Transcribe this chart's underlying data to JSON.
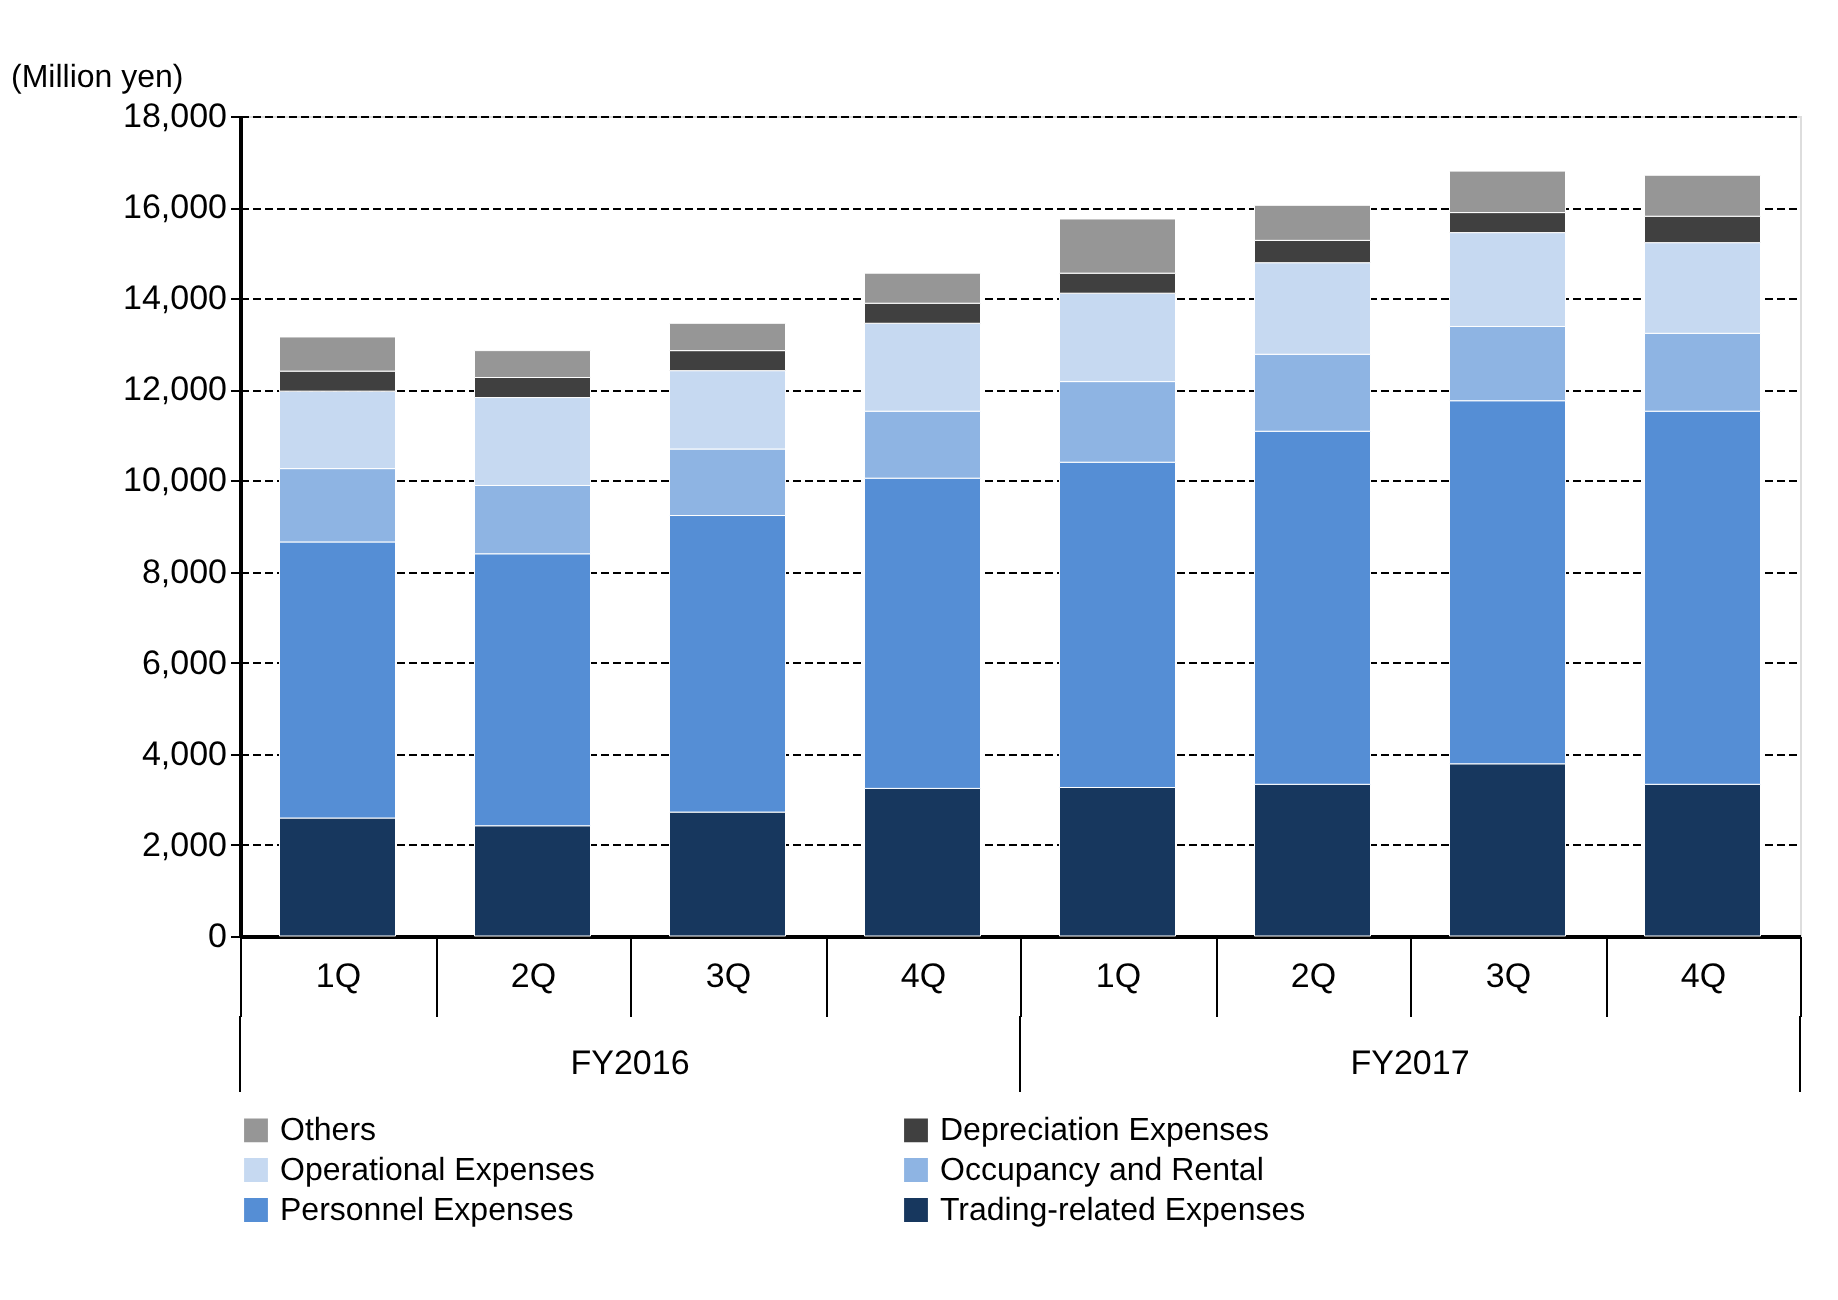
{
  "chart_data": {
    "type": "bar",
    "stacked": true,
    "ylabel": "(Million yen)",
    "categories": [
      "1Q",
      "2Q",
      "3Q",
      "4Q",
      "1Q",
      "2Q",
      "3Q",
      "4Q"
    ],
    "annotations": [
      "FY2016",
      "FY2017"
    ],
    "series": [
      {
        "name": "Trading-related Expenses",
        "color": "#17375e",
        "values": [
          2590,
          2420,
          2720,
          3240,
          3260,
          3330,
          3780,
          3330
        ]
      },
      {
        "name": "Personnel Expenses",
        "color": "#558ed5",
        "values": [
          6060,
          5970,
          6510,
          6810,
          7140,
          7750,
          7970,
          8190
        ]
      },
      {
        "name": "Occupancy and Rental",
        "color": "#8eb4e3",
        "values": [
          1610,
          1500,
          1460,
          1470,
          1770,
          1690,
          1630,
          1710
        ]
      },
      {
        "name": "Operational Expenses",
        "color": "#c6d9f1",
        "values": [
          1700,
          1930,
          1720,
          1930,
          1940,
          2010,
          2060,
          1990
        ]
      },
      {
        "name": "Depreciation Expenses",
        "color": "#404040",
        "values": [
          440,
          440,
          440,
          440,
          440,
          490,
          440,
          580
        ]
      },
      {
        "name": "Others",
        "color": "#969696",
        "values": [
          750,
          590,
          600,
          660,
          1190,
          770,
          910,
          900
        ]
      }
    ],
    "ylim": [
      0,
      18000
    ],
    "yticks": [
      {
        "value": 0,
        "label": "0"
      },
      {
        "value": 2000,
        "label": "2,000"
      },
      {
        "value": 4000,
        "label": "4,000"
      },
      {
        "value": 6000,
        "label": "6,000"
      },
      {
        "value": 8000,
        "label": "8,000"
      },
      {
        "value": 10000,
        "label": "10,000"
      },
      {
        "value": 12000,
        "label": "12,000"
      },
      {
        "value": 14000,
        "label": "14,000"
      },
      {
        "value": 16000,
        "label": "16,000"
      },
      {
        "value": 18000,
        "label": "18,000"
      }
    ],
    "grid": "y",
    "legend": "bottom"
  }
}
